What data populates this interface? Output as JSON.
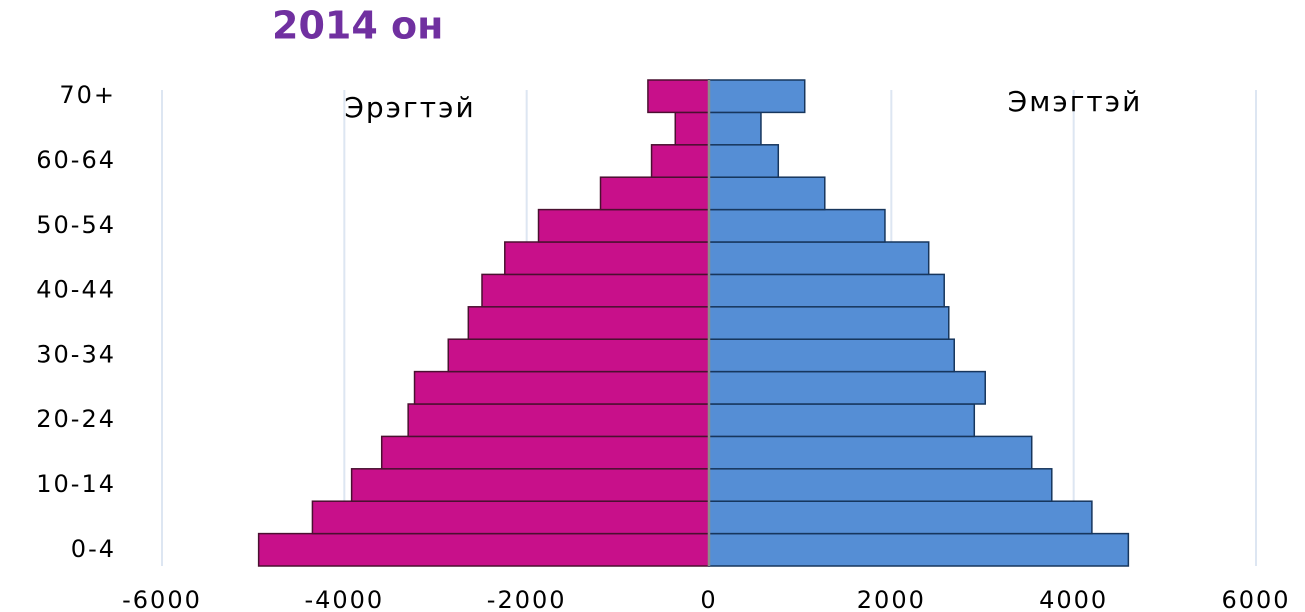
{
  "chart_data": {
    "type": "population-pyramid",
    "title": "2014 он",
    "categories": [
      "0-4",
      null,
      "10-14",
      null,
      "20-24",
      null,
      "30-34",
      null,
      "40-44",
      null,
      "50-54",
      null,
      "60-64",
      null,
      "70+"
    ],
    "series": [
      {
        "name": "Эрэгтэй",
        "color": "#c8108a",
        "values": [
          -4940,
          -4350,
          -3920,
          -3590,
          -3300,
          -3230,
          -2860,
          -2640,
          -2490,
          -2240,
          -1870,
          -1190,
          -630,
          -370,
          -670
        ]
      },
      {
        "name": "Эмэгтэй",
        "color": "#558ed5",
        "values": [
          4600,
          4200,
          3760,
          3540,
          2910,
          3030,
          2690,
          2630,
          2580,
          2410,
          1930,
          1270,
          760,
          570,
          1050
        ]
      }
    ],
    "xlim": [
      -6000,
      6000
    ],
    "xticks": [
      -6000,
      -4000,
      -2000,
      0,
      2000,
      4000,
      6000
    ],
    "grid": true
  }
}
